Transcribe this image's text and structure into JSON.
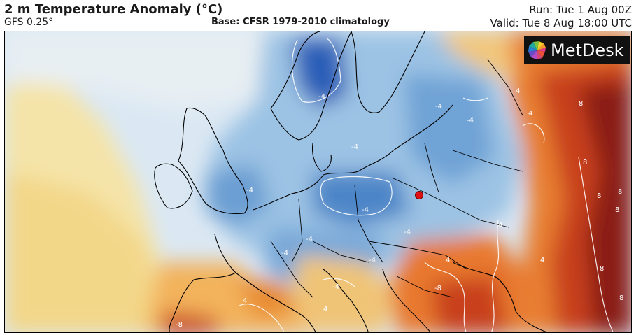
{
  "header": {
    "title": "2 m Temperature Anomaly (°C)",
    "model": "GFS 0.25°",
    "base": "Base: CFSR 1979-2010 climatology",
    "run": "Run: Tue 1 Aug 00Z",
    "valid": "Valid: Tue 8 Aug 18:00 UTC"
  },
  "logo": {
    "text": "MetDesk",
    "icon": "metdesk-logo-icon"
  },
  "map": {
    "contour_labels": [
      "-4",
      "-4",
      "-4",
      "-4",
      "-4",
      "-4",
      "-4",
      "-4",
      "-4",
      "-4",
      "-4",
      "4",
      "4",
      "4",
      "4",
      "4",
      "4",
      "4",
      "8",
      "8",
      "8",
      "8",
      "8",
      "8",
      "8",
      "-8",
      "-8"
    ],
    "marker": {
      "color": "#e01010",
      "icon": "location-marker-icon"
    },
    "colors": {
      "strong_negative": "#1f4fae",
      "negative": "#5a93cf",
      "weak_negative": "#cfe0ef",
      "neutral": "#f2f0e6",
      "weak_positive": "#f6d98a",
      "positive": "#f0a24a",
      "strong_positive": "#d5461c",
      "extreme_positive": "#7a1612"
    }
  }
}
